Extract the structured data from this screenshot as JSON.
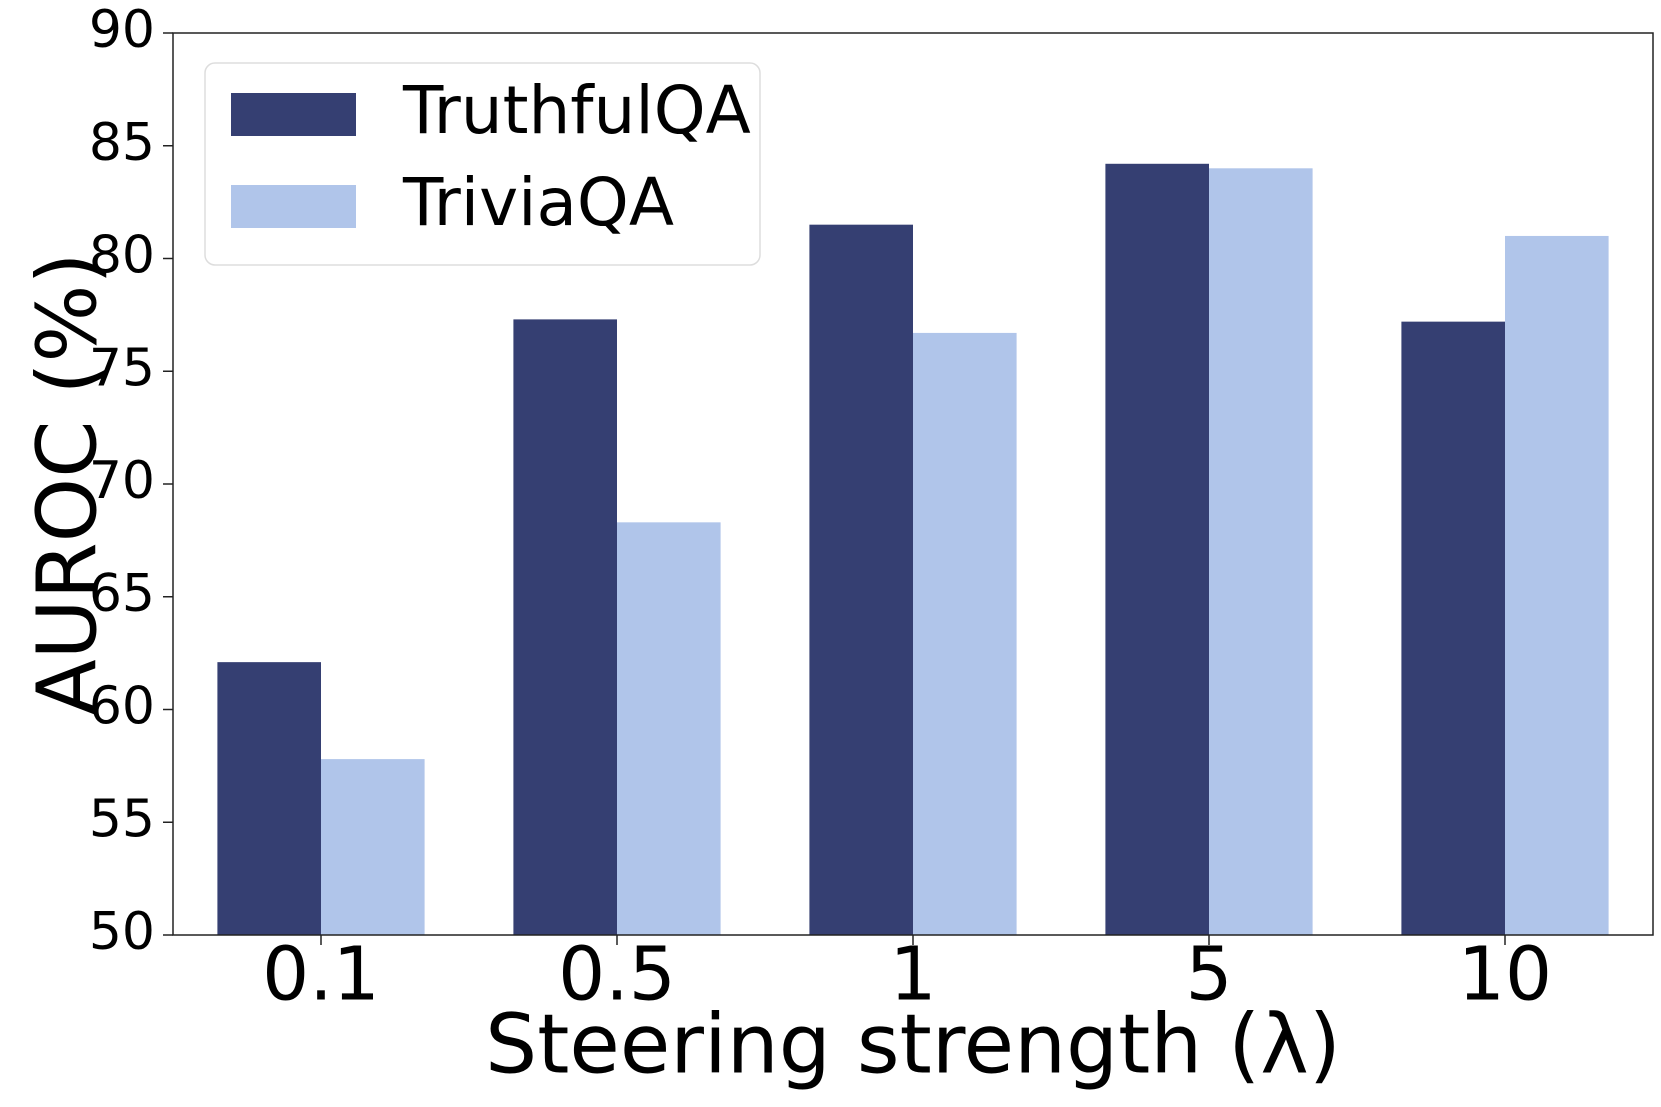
{
  "chart_data": {
    "type": "bar",
    "title": "",
    "xlabel": "Steering strength (λ)",
    "ylabel": "AUROC (%)",
    "categories": [
      "0.1",
      "0.5",
      "1",
      "5",
      "10"
    ],
    "ylim": [
      50,
      90
    ],
    "yticks": [
      50,
      55,
      60,
      65,
      70,
      75,
      80,
      85,
      90
    ],
    "grid": false,
    "legend_position": "top-left",
    "series": [
      {
        "name": "TruthfulQA",
        "color": "#353f72",
        "values": [
          62.1,
          77.3,
          81.5,
          84.2,
          77.2
        ]
      },
      {
        "name": "TriviaQA",
        "color": "#b0c5ea",
        "values": [
          57.8,
          68.3,
          76.7,
          84.0,
          81.0
        ]
      }
    ]
  }
}
